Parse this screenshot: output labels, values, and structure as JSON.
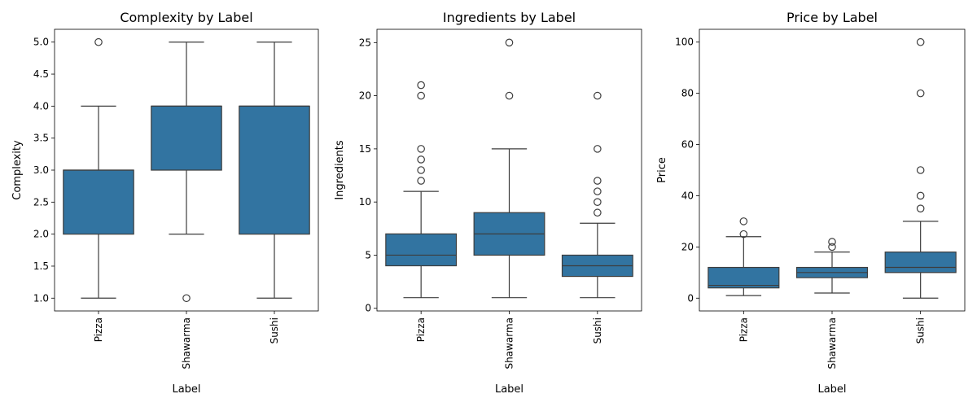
{
  "chart_data": [
    {
      "type": "box",
      "title": "Complexity by Label",
      "xlabel": "Label",
      "ylabel": "Complexity",
      "categories": [
        "Pizza",
        "Shawarma",
        "Sushi"
      ],
      "ylim": [
        0.8,
        5.2
      ],
      "yticks": [
        1.0,
        1.5,
        2.0,
        2.5,
        3.0,
        3.5,
        4.0,
        4.5,
        5.0
      ],
      "ytick_labels": [
        "1.0",
        "1.5",
        "2.0",
        "2.5",
        "3.0",
        "3.5",
        "4.0",
        "4.5",
        "5.0"
      ],
      "boxes": [
        {
          "category": "Pizza",
          "whisker_low": 1.0,
          "q1": 2.0,
          "median": 3.0,
          "q3": 3.0,
          "whisker_high": 4.0,
          "outliers": [
            5.0
          ]
        },
        {
          "category": "Shawarma",
          "whisker_low": 2.0,
          "q1": 3.0,
          "median": 4.0,
          "q3": 4.0,
          "whisker_high": 5.0,
          "outliers": [
            1.0
          ]
        },
        {
          "category": "Sushi",
          "whisker_low": 1.0,
          "q1": 2.0,
          "median": 4.0,
          "q3": 4.0,
          "whisker_high": 5.0,
          "outliers": []
        }
      ]
    },
    {
      "type": "box",
      "title": "Ingredients by Label",
      "xlabel": "Label",
      "ylabel": "Ingredients",
      "categories": [
        "Pizza",
        "Shawarma",
        "Sushi"
      ],
      "ylim": [
        -0.25,
        26.25
      ],
      "yticks": [
        0,
        5,
        10,
        15,
        20,
        25
      ],
      "ytick_labels": [
        "0",
        "5",
        "10",
        "15",
        "20",
        "25"
      ],
      "boxes": [
        {
          "category": "Pizza",
          "whisker_low": 1,
          "q1": 4,
          "median": 5,
          "q3": 7,
          "whisker_high": 11,
          "outliers": [
            12,
            13,
            14,
            15,
            20,
            21
          ]
        },
        {
          "category": "Shawarma",
          "whisker_low": 1,
          "q1": 5,
          "median": 7,
          "q3": 9,
          "whisker_high": 15,
          "outliers": [
            20,
            25
          ]
        },
        {
          "category": "Sushi",
          "whisker_low": 1,
          "q1": 3,
          "median": 4,
          "q3": 5,
          "whisker_high": 8,
          "outliers": [
            9,
            10,
            11,
            12,
            15,
            20
          ]
        }
      ]
    },
    {
      "type": "box",
      "title": "Price by Label",
      "xlabel": "Label",
      "ylabel": "Price",
      "categories": [
        "Pizza",
        "Shawarma",
        "Sushi"
      ],
      "ylim": [
        -5,
        105
      ],
      "yticks": [
        0,
        20,
        40,
        60,
        80,
        100
      ],
      "ytick_labels": [
        "0",
        "20",
        "40",
        "60",
        "80",
        "100"
      ],
      "boxes": [
        {
          "category": "Pizza",
          "whisker_low": 1,
          "q1": 4,
          "median": 5,
          "q3": 12,
          "whisker_high": 24,
          "outliers": [
            25,
            30
          ]
        },
        {
          "category": "Shawarma",
          "whisker_low": 2,
          "q1": 8,
          "median": 10,
          "q3": 12,
          "whisker_high": 18,
          "outliers": [
            20,
            22
          ]
        },
        {
          "category": "Sushi",
          "whisker_low": 0,
          "q1": 10,
          "median": 12,
          "q3": 18,
          "whisker_high": 30,
          "outliers": [
            35,
            40,
            50,
            80,
            100
          ]
        }
      ]
    }
  ],
  "colors": {
    "box_fill": "#3274a1",
    "line": "#3d3d3d",
    "axes": "#000000"
  }
}
